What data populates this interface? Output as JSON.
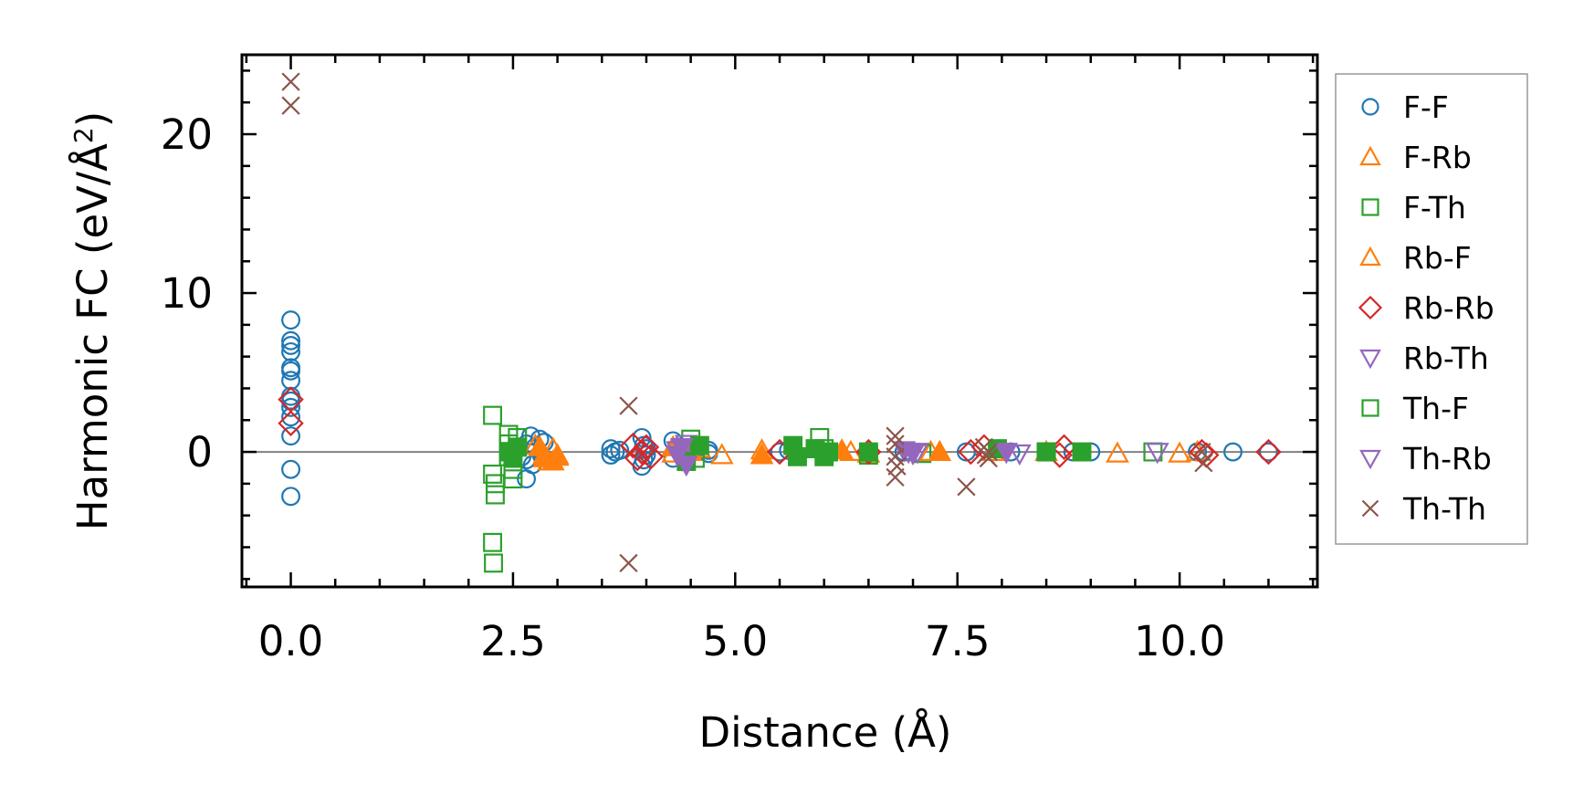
{
  "chart_data": {
    "type": "scatter",
    "title": "",
    "xlabel": "Distance (Å)",
    "ylabel_main": "Harmonic FC (eV/Å",
    "ylabel_sup": "2",
    "ylabel_close": ")",
    "xlim": [
      -0.55,
      11.55
    ],
    "ylim": [
      -8.5,
      25.0
    ],
    "xticks": [
      0.0,
      2.5,
      5.0,
      7.5,
      10.0
    ],
    "xtick_labels": [
      "0.0",
      "2.5",
      "5.0",
      "7.5",
      "10.0"
    ],
    "yticks": [
      0,
      10,
      20
    ],
    "ytick_labels": [
      "0",
      "10",
      "20"
    ],
    "reference_line_y": 0,
    "legend_position": "right",
    "series": [
      {
        "name": "F-F",
        "marker": "circle",
        "color": "#1f77b4",
        "points": [
          [
            0,
            8.3
          ],
          [
            0,
            7.0
          ],
          [
            0,
            6.7
          ],
          [
            0,
            6.3
          ],
          [
            0,
            5.3
          ],
          [
            0,
            5.1
          ],
          [
            0,
            4.5
          ],
          [
            0,
            3.5
          ],
          [
            0,
            3.2
          ],
          [
            0,
            2.8
          ],
          [
            0,
            2.2
          ],
          [
            0,
            1.0
          ],
          [
            0,
            -1.1
          ],
          [
            0,
            -2.8
          ],
          [
            2.6,
            -0.3
          ],
          [
            2.65,
            0.5
          ],
          [
            2.65,
            -0.5
          ],
          [
            2.65,
            -1.7
          ],
          [
            2.7,
            1.0
          ],
          [
            2.72,
            -0.8
          ],
          [
            2.75,
            0.3
          ],
          [
            2.8,
            0.8
          ],
          [
            2.82,
            -0.2
          ],
          [
            2.85,
            0.6
          ],
          [
            3.6,
            0.2
          ],
          [
            3.6,
            -0.2
          ],
          [
            3.65,
            0.0
          ],
          [
            3.7,
            0.1
          ],
          [
            3.95,
            0.9
          ],
          [
            3.95,
            -0.9
          ],
          [
            3.97,
            0.4
          ],
          [
            3.97,
            -0.5
          ],
          [
            4.0,
            0.2
          ],
          [
            4.0,
            -0.2
          ],
          [
            4.3,
            0.7
          ],
          [
            4.3,
            -0.4
          ],
          [
            4.35,
            0.3
          ],
          [
            4.4,
            0.0
          ],
          [
            4.7,
            0.1
          ],
          [
            4.7,
            -0.1
          ],
          [
            5.5,
            0.0
          ],
          [
            5.6,
            0.1
          ],
          [
            6.9,
            0.0
          ],
          [
            7.6,
            0.0
          ],
          [
            8.1,
            0.0
          ],
          [
            8.8,
            0.0
          ],
          [
            9.0,
            0.0
          ],
          [
            10.2,
            0.0
          ],
          [
            10.6,
            0.0
          ],
          [
            11.0,
            0.0
          ]
        ]
      },
      {
        "name": "F-Rb",
        "marker": "triangle-up",
        "color": "#ff7f0e",
        "points": [
          [
            2.75,
            0.4
          ],
          [
            2.85,
            -0.2
          ],
          [
            2.9,
            -0.6
          ],
          [
            2.95,
            0.2
          ],
          [
            3.0,
            -0.3
          ],
          [
            4.3,
            -0.1
          ],
          [
            4.6,
            0.2
          ],
          [
            4.85,
            -0.2
          ],
          [
            5.3,
            0.1
          ],
          [
            6.3,
            0.0
          ],
          [
            6.5,
            -0.1
          ],
          [
            7.2,
            0.0
          ],
          [
            7.9,
            0.0
          ],
          [
            8.5,
            0.0
          ],
          [
            9.3,
            -0.1
          ],
          [
            10.0,
            -0.1
          ],
          [
            10.2,
            0.0
          ]
        ]
      },
      {
        "name": "F-Th",
        "marker": "square",
        "color": "#2ca02c",
        "points": [
          [
            2.27,
            2.3
          ],
          [
            2.27,
            -1.4
          ],
          [
            2.3,
            -2.0
          ],
          [
            2.3,
            -2.7
          ],
          [
            2.27,
            -5.7
          ],
          [
            2.28,
            -7.0
          ],
          [
            2.45,
            1.1
          ],
          [
            2.45,
            0.5
          ],
          [
            2.45,
            -0.3
          ],
          [
            2.5,
            -1.1
          ],
          [
            2.5,
            -1.7
          ],
          [
            2.55,
            0.9
          ],
          [
            4.5,
            0.8
          ],
          [
            4.55,
            -0.4
          ],
          [
            5.95,
            0.9
          ],
          [
            6.0,
            0.2
          ],
          [
            6.5,
            -0.2
          ],
          [
            7.1,
            -0.1
          ],
          [
            8.5,
            0.0
          ],
          [
            9.7,
            0.0
          ]
        ]
      },
      {
        "name": "Rb-F",
        "marker": "triangle-up-filled",
        "color": "#ff7f0e",
        "points": [
          [
            2.8,
            0.3
          ],
          [
            2.85,
            -0.4
          ],
          [
            2.95,
            -0.6
          ],
          [
            3.0,
            -0.2
          ],
          [
            4.3,
            0.3
          ],
          [
            4.5,
            0.0
          ],
          [
            5.3,
            -0.2
          ],
          [
            6.2,
            0.1
          ],
          [
            7.3,
            0.0
          ]
        ]
      },
      {
        "name": "Rb-Rb",
        "marker": "diamond",
        "color": "#d62728",
        "points": [
          [
            0,
            3.3
          ],
          [
            0,
            1.8
          ],
          [
            3.85,
            0.4
          ],
          [
            3.9,
            -0.4
          ],
          [
            3.95,
            0.0
          ],
          [
            4.0,
            0.3
          ],
          [
            4.05,
            -0.3
          ],
          [
            5.5,
            0.0
          ],
          [
            6.5,
            0.0
          ],
          [
            7.65,
            0.0
          ],
          [
            7.8,
            0.3
          ],
          [
            8.65,
            -0.2
          ],
          [
            8.7,
            0.3
          ],
          [
            10.25,
            0.0
          ],
          [
            10.3,
            -0.2
          ],
          [
            11.0,
            0.0
          ]
        ]
      },
      {
        "name": "Rb-Th",
        "marker": "triangle-down",
        "color": "#9467bd",
        "points": [
          [
            4.35,
            0.1
          ],
          [
            4.4,
            -0.5
          ],
          [
            4.45,
            0.5
          ],
          [
            6.95,
            0.0
          ],
          [
            7.05,
            0.0
          ],
          [
            8.2,
            -0.1
          ],
          [
            9.75,
            0.0
          ]
        ]
      },
      {
        "name": "Th-F",
        "marker": "square-filled",
        "color": "#2ca02c",
        "points": [
          [
            2.45,
            0.0
          ],
          [
            2.5,
            -0.4
          ],
          [
            2.55,
            0.3
          ],
          [
            4.45,
            -0.6
          ],
          [
            4.6,
            0.4
          ],
          [
            5.65,
            0.4
          ],
          [
            5.7,
            -0.3
          ],
          [
            5.9,
            0.2
          ],
          [
            6.0,
            -0.3
          ],
          [
            6.05,
            0.0
          ],
          [
            6.5,
            0.0
          ],
          [
            7.95,
            0.2
          ],
          [
            8.5,
            0.0
          ],
          [
            8.9,
            0.0
          ]
        ]
      },
      {
        "name": "Th-Rb",
        "marker": "triangle-down-filled",
        "color": "#9467bd",
        "points": [
          [
            4.35,
            -0.2
          ],
          [
            4.4,
            0.3
          ],
          [
            4.45,
            -0.8
          ],
          [
            6.9,
            0.1
          ],
          [
            7.0,
            -0.1
          ],
          [
            8.05,
            0.0
          ]
        ]
      },
      {
        "name": "Th-Th",
        "marker": "x",
        "color": "#8c564b",
        "points": [
          [
            0,
            23.3
          ],
          [
            0,
            21.8
          ],
          [
            3.8,
            2.9
          ],
          [
            3.8,
            -7.0
          ],
          [
            6.8,
            1.0
          ],
          [
            6.8,
            0.5
          ],
          [
            6.8,
            -0.3
          ],
          [
            6.82,
            -0.9
          ],
          [
            6.8,
            -1.6
          ],
          [
            7.6,
            -2.2
          ],
          [
            7.8,
            0.3
          ],
          [
            7.82,
            -0.2
          ],
          [
            7.85,
            0.0
          ],
          [
            7.85,
            -0.4
          ],
          [
            10.25,
            0.0
          ],
          [
            10.27,
            -0.7
          ]
        ]
      }
    ]
  }
}
